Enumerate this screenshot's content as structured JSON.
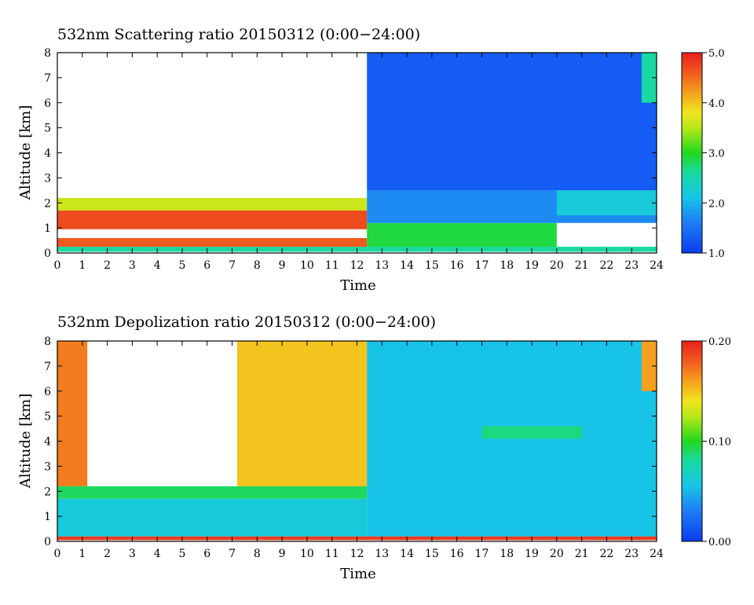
{
  "chart_data": [
    {
      "type": "heatmap",
      "title": "532nm Scattering ratio  20150312 (0:00−24:00)",
      "xlabel": "Time",
      "ylabel": "Altitude [km]",
      "xlim": [
        0,
        24
      ],
      "ylim": [
        0,
        8
      ],
      "x_ticks": [
        "0",
        "1",
        "2",
        "3",
        "4",
        "5",
        "6",
        "7",
        "8",
        "9",
        "10",
        "11",
        "12",
        "13",
        "14",
        "15",
        "16",
        "17",
        "18",
        "19",
        "20",
        "21",
        "22",
        "23",
        "24"
      ],
      "y_ticks": [
        "0",
        "1",
        "2",
        "3",
        "4",
        "5",
        "6",
        "7",
        "8"
      ],
      "colorbar": {
        "range": [
          1.0,
          5.0
        ],
        "tick_labels": [
          "1.0",
          "2.0",
          "3.0",
          "4.0",
          "5.0"
        ],
        "tick_values": [
          1.0,
          2.0,
          3.0,
          4.0,
          5.0
        ]
      },
      "layers": [
        {
          "t0": 0,
          "t1": 24,
          "z0": 0.05,
          "z1": 0.25,
          "value": 2.6
        },
        {
          "t0": 0,
          "t1": 12.4,
          "z0": 0.25,
          "z1": 0.6,
          "value": 4.6
        },
        {
          "t0": 0,
          "t1": 12.4,
          "z0": 0.6,
          "z1": 0.95,
          "value": 1.0,
          "blank": true
        },
        {
          "t0": 0,
          "t1": 12.4,
          "z0": 0.95,
          "z1": 1.7,
          "value": 4.7
        },
        {
          "t0": 0,
          "t1": 12.4,
          "z0": 1.7,
          "z1": 2.2,
          "value": 3.6
        },
        {
          "t0": 12.4,
          "t1": 20,
          "z0": 0.25,
          "z1": 1.2,
          "value": 2.9
        },
        {
          "t0": 12.4,
          "t1": 24,
          "z0": 1.2,
          "z1": 2.5,
          "value": 1.7
        },
        {
          "t0": 12.4,
          "t1": 24,
          "z0": 2.5,
          "z1": 8.0,
          "value": 1.3
        },
        {
          "t0": 20,
          "t1": 24,
          "z0": 1.5,
          "z1": 2.5,
          "value": 2.2
        },
        {
          "t0": 23.4,
          "t1": 24,
          "z0": 6.0,
          "z1": 8.0,
          "value": 2.6
        }
      ]
    },
    {
      "type": "heatmap",
      "title": "532nm Depolization ratio  20150312 (0:00−24:00)",
      "xlabel": "Time",
      "ylabel": "Altitude [km]",
      "xlim": [
        0,
        24
      ],
      "ylim": [
        0,
        8
      ],
      "x_ticks": [
        "0",
        "1",
        "2",
        "3",
        "4",
        "5",
        "6",
        "7",
        "8",
        "9",
        "10",
        "11",
        "12",
        "13",
        "14",
        "15",
        "16",
        "17",
        "18",
        "19",
        "20",
        "21",
        "22",
        "23",
        "24"
      ],
      "y_ticks": [
        "0",
        "1",
        "2",
        "3",
        "4",
        "5",
        "6",
        "7",
        "8"
      ],
      "colorbar": {
        "range": [
          0.0,
          0.2
        ],
        "tick_labels": [
          "0.00",
          "0.10",
          "0.20"
        ],
        "tick_values": [
          0.0,
          0.1,
          0.2
        ]
      },
      "layers": [
        {
          "t0": 0,
          "t1": 24,
          "z0": 0.05,
          "z1": 0.2,
          "value": 0.19
        },
        {
          "t0": 0,
          "t1": 12.4,
          "z0": 0.2,
          "z1": 1.7,
          "value": 0.06
        },
        {
          "t0": 0,
          "t1": 12.4,
          "z0": 1.7,
          "z1": 2.2,
          "value": 0.09
        },
        {
          "t0": 0,
          "t1": 1.2,
          "z0": 2.2,
          "z1": 8.0,
          "value": 0.17
        },
        {
          "t0": 7.2,
          "t1": 12.4,
          "z0": 2.2,
          "z1": 8.0,
          "value": 0.15
        },
        {
          "t0": 12.4,
          "t1": 24,
          "z0": 0.2,
          "z1": 8.0,
          "value": 0.055
        },
        {
          "t0": 17,
          "t1": 21,
          "z0": 4.1,
          "z1": 4.6,
          "value": 0.085
        },
        {
          "t0": 23.4,
          "t1": 24,
          "z0": 6.0,
          "z1": 8.0,
          "value": 0.16
        }
      ]
    }
  ]
}
